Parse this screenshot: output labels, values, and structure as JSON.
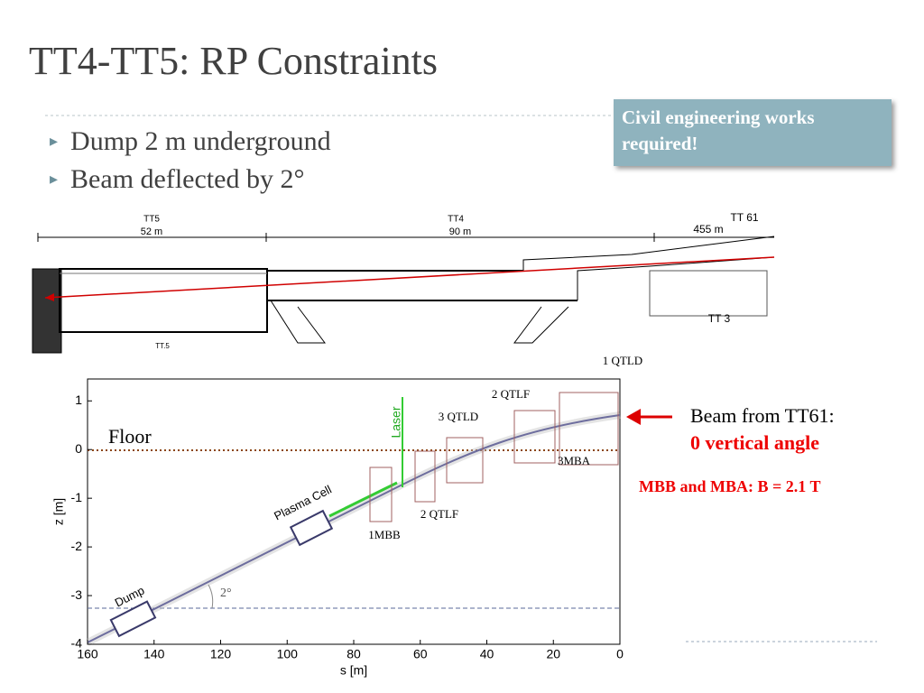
{
  "title": "TT4-TT5: RP Constraints",
  "bullets": [
    "Dump 2 m underground",
    "Beam deflected by 2°"
  ],
  "callout": "Civil engineering works required!",
  "drawing": {
    "labels": [
      "TT5",
      "52 m",
      "TT4",
      "90 m",
      "TT 61",
      "455 m",
      "TT 3",
      "TT.5"
    ]
  },
  "plot": {
    "xlabel": "s [m]",
    "ylabel": "z [m]",
    "xlim": [
      160,
      0
    ],
    "ylim": [
      -4,
      1.45
    ],
    "xticks": [
      160,
      140,
      120,
      100,
      80,
      60,
      40,
      20,
      0
    ],
    "yticks": [
      -4,
      -3,
      -2,
      -1,
      0,
      1
    ],
    "annotations": [
      "1 QTLD",
      "2 QTLF",
      "3 QTLD",
      "Laser",
      "Floor",
      "Plasma Cell",
      "Dump",
      "2°",
      "2 QTLF",
      "1MBB",
      "3MBA"
    ]
  },
  "notes": {
    "beam": "Beam from TT61:",
    "angle": "0 vertical angle",
    "field": "MBB and MBA: B = 2.1 T"
  }
}
